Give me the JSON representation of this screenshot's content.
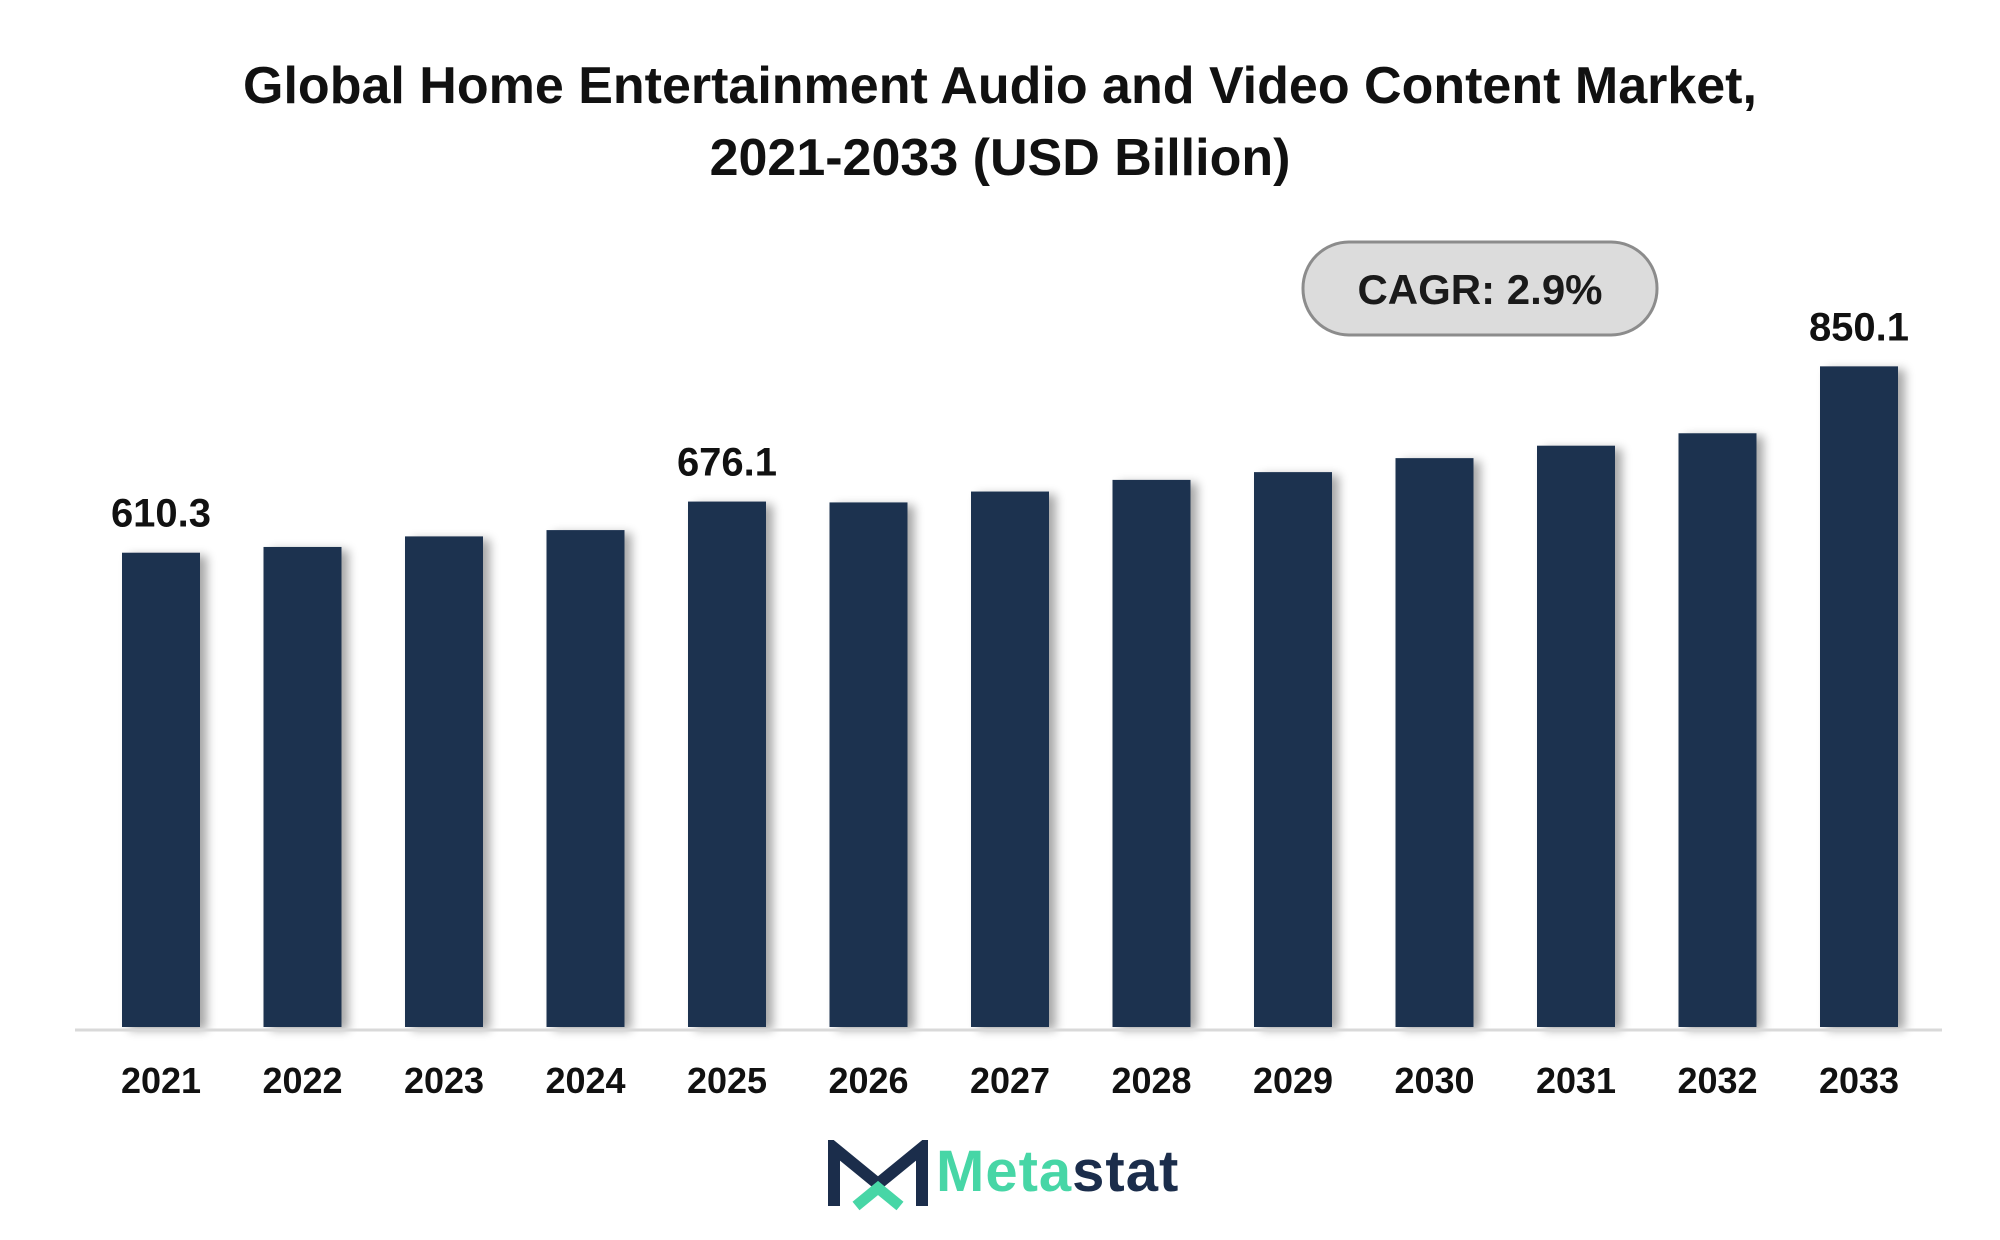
{
  "title_line1": "Global Home Entertainment Audio and Video Content Market,",
  "title_line2": "2021-2033 (USD Billion)",
  "cagr_label": "CAGR: 2.9%",
  "logo": {
    "part1": "Meta",
    "part2": "stat"
  },
  "colors": {
    "bar": "#1b3150",
    "axis": "#d9d9d9",
    "cagr_fill": "#dcdcdc",
    "cagr_border": "#8c8c8c",
    "logo_accent": "#47d6a6",
    "logo_dark": "#1b2d4b"
  },
  "chart_data": {
    "type": "bar",
    "title": "Global Home Entertainment Audio and Video Content Market, 2021-2033 (USD Billion)",
    "categories": [
      "2021",
      "2022",
      "2023",
      "2024",
      "2025",
      "2026",
      "2027",
      "2028",
      "2029",
      "2030",
      "2031",
      "2032",
      "2033"
    ],
    "values": [
      610.3,
      617.7,
      631.3,
      639.4,
      676.1,
      675.0,
      689.0,
      704.0,
      714.0,
      732.0,
      748.0,
      764.0,
      850.1
    ],
    "data_labels": [
      "610.3",
      "",
      "",
      "",
      "676.1",
      "",
      "",
      "",
      "",
      "",
      "",
      "",
      "850.1"
    ],
    "annotation": "CAGR: 2.9%",
    "xlabel": "",
    "ylabel": "",
    "ylim": [
      0,
      875
    ],
    "grid": false,
    "legend": "none"
  }
}
